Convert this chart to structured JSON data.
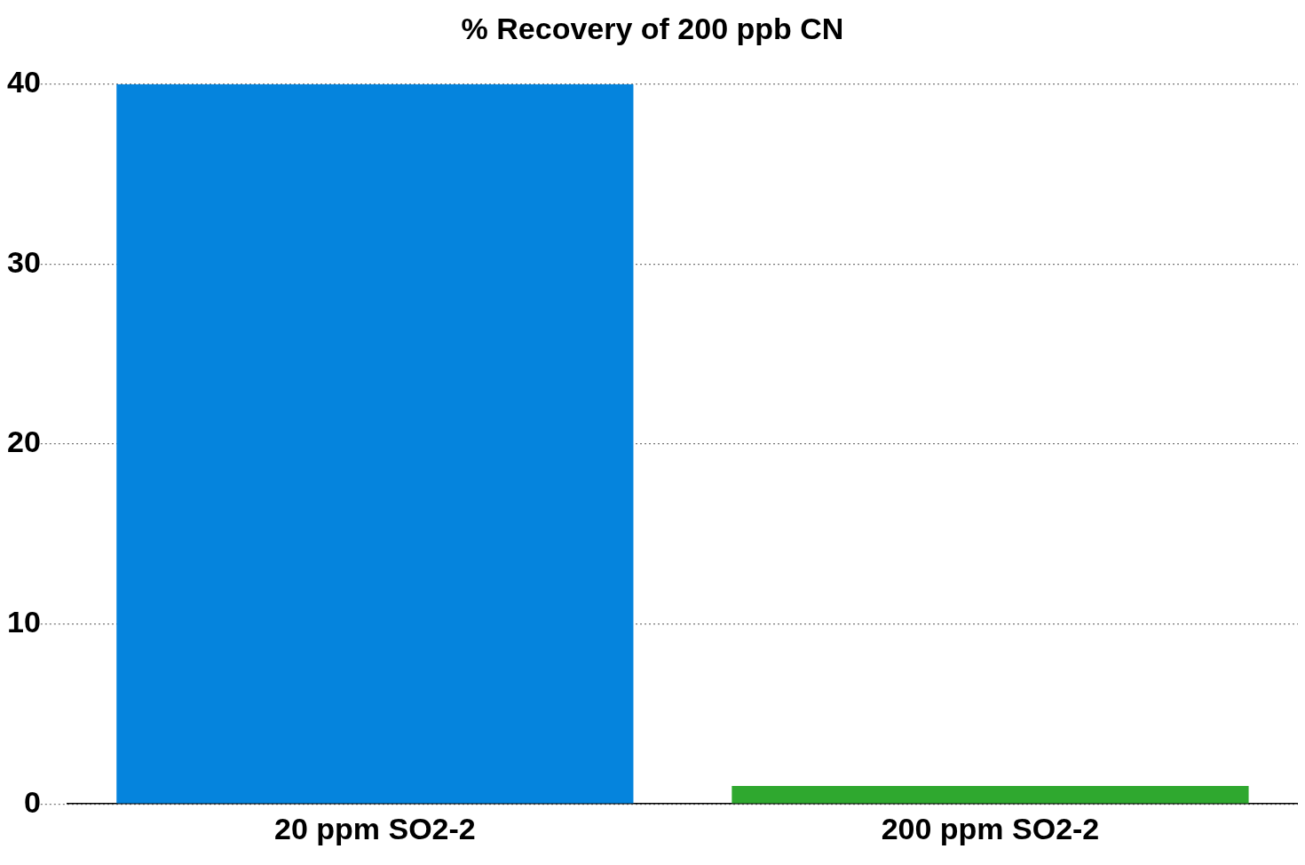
{
  "chart_data": {
    "type": "bar",
    "title": "% Recovery of 200 ppb CN",
    "categories": [
      "20 ppm SO2-2",
      "200 ppm SO2-2"
    ],
    "values": [
      40,
      1
    ],
    "colors": [
      "#0584dd",
      "#2fa82f"
    ],
    "ylim": [
      0,
      40
    ],
    "yticks": [
      0,
      10,
      20,
      30,
      40
    ],
    "grid": "y",
    "legend": false
  }
}
